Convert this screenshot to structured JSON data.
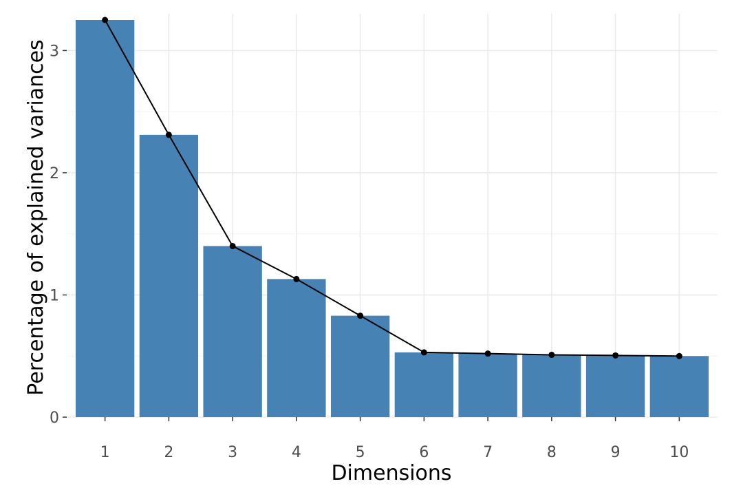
{
  "chart_data": {
    "type": "bar",
    "title": "",
    "xlabel": "Dimensions",
    "ylabel": "Percentage of explained variances",
    "categories": [
      "1",
      "2",
      "3",
      "4",
      "5",
      "6",
      "7",
      "8",
      "9",
      "10"
    ],
    "values": [
      3.25,
      2.31,
      1.4,
      1.13,
      0.83,
      0.53,
      0.52,
      0.51,
      0.505,
      0.5
    ],
    "line_values": [
      3.25,
      2.31,
      1.4,
      1.13,
      0.83,
      0.53,
      0.52,
      0.51,
      0.505,
      0.5
    ],
    "ylim": [
      0,
      3.25
    ],
    "yticks": [
      0,
      1,
      2,
      3
    ],
    "grid": true,
    "legend": "none",
    "colors": {
      "bar": "#4682b4",
      "line": "#000000",
      "grid": "#ebebeb"
    }
  }
}
